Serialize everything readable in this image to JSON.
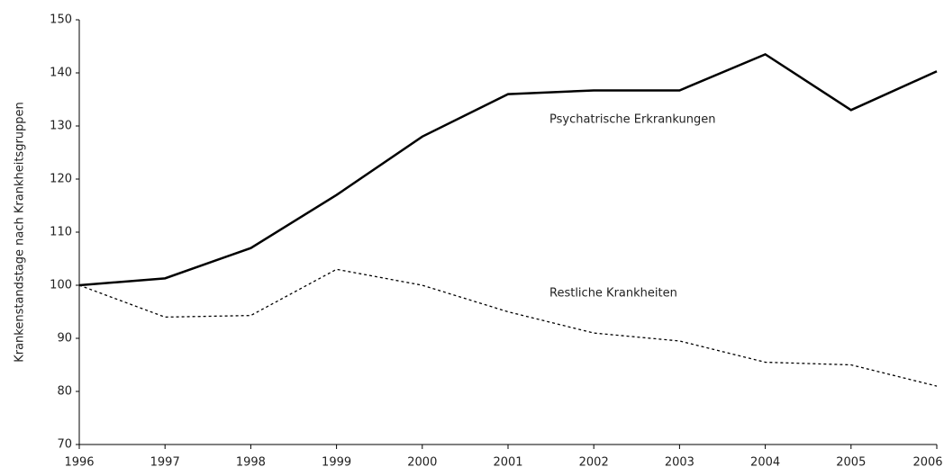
{
  "chart_data": {
    "type": "line",
    "ylabel": "Krankenstandstage nach Krankheitsgruppen",
    "x": [
      1996,
      1997,
      1998,
      1999,
      2000,
      2001,
      2002,
      2003,
      2004,
      2005,
      2006
    ],
    "xlim": [
      1996,
      2006
    ],
    "xticks": [
      1996,
      1997,
      1998,
      1999,
      2000,
      2001,
      2002,
      2003,
      2004,
      2005,
      2006
    ],
    "ylim": [
      70,
      150
    ],
    "yticks": [
      70,
      80,
      90,
      100,
      110,
      120,
      130,
      140,
      150
    ],
    "series": [
      {
        "name": "Psychatrische Erkrankungen",
        "color": "#000000",
        "dash": "solid",
        "values": [
          100,
          101.3,
          107,
          117,
          128,
          136,
          136.7,
          136.7,
          143.5,
          133,
          140.3
        ]
      },
      {
        "name": "Restliche Krankheiten",
        "color": "#000000",
        "dash": "dotted",
        "values": [
          100,
          94,
          94.3,
          103,
          100,
          95,
          91,
          89.5,
          85.5,
          85,
          81
        ]
      }
    ]
  }
}
